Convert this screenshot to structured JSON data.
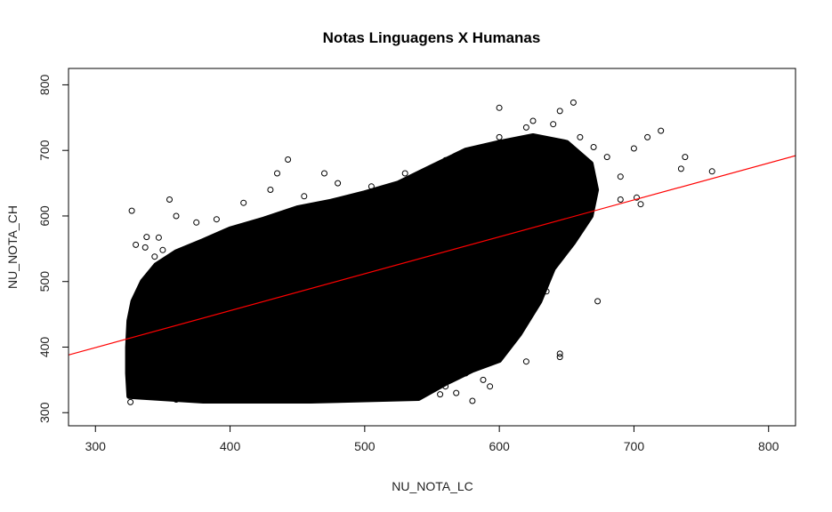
{
  "chart_data": {
    "type": "scatter",
    "title": "Notas Linguagens X Humanas",
    "xlabel": "NU_NOTA_LC",
    "ylabel": "NU_NOTA_CH",
    "xlim": [
      280,
      820
    ],
    "ylim": [
      280,
      825
    ],
    "x_ticks": [
      300,
      400,
      500,
      600,
      700,
      800
    ],
    "y_ticks": [
      300,
      400,
      500,
      600,
      700,
      800
    ],
    "x_tick_labels": [
      "300",
      "400",
      "500",
      "600",
      "700",
      "800"
    ],
    "y_tick_labels": [
      "300",
      "400",
      "500",
      "600",
      "700",
      "800"
    ],
    "grid": false,
    "legend": "none",
    "point_color": "#000000",
    "marker": "open-circle",
    "regression_line": {
      "x": [
        280,
        820
      ],
      "y": [
        388,
        692
      ],
      "color": "#ff0000"
    },
    "series": [
      {
        "values": [
          [
            327,
            608
          ],
          [
            355,
            625
          ],
          [
            443,
            686
          ],
          [
            435,
            665
          ],
          [
            470,
            665
          ],
          [
            600,
            765
          ],
          [
            655,
            773
          ],
          [
            645,
            760
          ],
          [
            625,
            745
          ],
          [
            640,
            740
          ],
          [
            720,
            730
          ],
          [
            738,
            690
          ],
          [
            758,
            668
          ],
          [
            735,
            672
          ],
          [
            710,
            720
          ],
          [
            700,
            703
          ],
          [
            705,
            618
          ],
          [
            702,
            628
          ],
          [
            690,
            625
          ],
          [
            673,
            470
          ],
          [
            635,
            485
          ],
          [
            645,
            390
          ],
          [
            645,
            385
          ],
          [
            620,
            378
          ],
          [
            598,
            395
          ],
          [
            580,
            318
          ],
          [
            593,
            340
          ],
          [
            588,
            350
          ],
          [
            575,
            360
          ],
          [
            568,
            330
          ],
          [
            556,
            328
          ],
          [
            330,
            556
          ],
          [
            337,
            552
          ],
          [
            338,
            568
          ],
          [
            347,
            567
          ],
          [
            350,
            548
          ],
          [
            344,
            538
          ],
          [
            326,
            316
          ],
          [
            330,
            330
          ],
          [
            360,
            320
          ],
          [
            400,
            320
          ],
          [
            450,
            322
          ],
          [
            500,
            325
          ],
          [
            520,
            330
          ],
          [
            540,
            335
          ],
          [
            560,
            340
          ],
          [
            335,
            490
          ],
          [
            340,
            470
          ],
          [
            360,
            600
          ],
          [
            375,
            590
          ],
          [
            390,
            595
          ],
          [
            410,
            620
          ],
          [
            430,
            640
          ],
          [
            455,
            630
          ],
          [
            480,
            650
          ],
          [
            505,
            645
          ],
          [
            530,
            665
          ],
          [
            560,
            685
          ],
          [
            580,
            700
          ],
          [
            600,
            720
          ],
          [
            620,
            735
          ],
          [
            650,
            700
          ],
          [
            660,
            720
          ],
          [
            670,
            705
          ],
          [
            680,
            690
          ],
          [
            690,
            660
          ],
          [
            665,
            650
          ],
          [
            655,
            625
          ],
          [
            640,
            560
          ],
          [
            630,
            540
          ],
          [
            620,
            520
          ],
          [
            610,
            500
          ],
          [
            600,
            470
          ],
          [
            590,
            450
          ],
          [
            580,
            420
          ],
          [
            570,
            400
          ],
          [
            560,
            380
          ],
          [
            545,
            365
          ],
          [
            530,
            355
          ],
          [
            510,
            345
          ],
          [
            490,
            340
          ],
          [
            470,
            338
          ],
          [
            440,
            335
          ],
          [
            410,
            333
          ],
          [
            380,
            340
          ],
          [
            355,
            355
          ],
          [
            340,
            380
          ],
          [
            330,
            410
          ],
          [
            328,
            440
          ],
          [
            332,
            470
          ],
          [
            345,
            500
          ],
          [
            365,
            520
          ],
          [
            380,
            540
          ],
          [
            400,
            560
          ],
          [
            420,
            575
          ],
          [
            440,
            580
          ],
          [
            460,
            600
          ],
          [
            480,
            610
          ],
          [
            500,
            620
          ],
          [
            520,
            630
          ],
          [
            540,
            640
          ],
          [
            560,
            660
          ],
          [
            580,
            675
          ],
          [
            600,
            690
          ],
          [
            615,
            705
          ],
          [
            630,
            710
          ],
          [
            645,
            690
          ],
          [
            650,
            670
          ],
          [
            640,
            650
          ],
          [
            630,
            640
          ],
          [
            620,
            625
          ],
          [
            610,
            600
          ],
          [
            600,
            580
          ],
          [
            590,
            560
          ],
          [
            580,
            545
          ],
          [
            570,
            520
          ],
          [
            560,
            500
          ],
          [
            550,
            480
          ],
          [
            540,
            460
          ],
          [
            525,
            440
          ],
          [
            510,
            420
          ],
          [
            490,
            400
          ],
          [
            470,
            385
          ],
          [
            450,
            375
          ],
          [
            430,
            365
          ],
          [
            410,
            360
          ],
          [
            390,
            365
          ],
          [
            370,
            375
          ],
          [
            355,
            390
          ],
          [
            345,
            410
          ]
        ]
      }
    ]
  }
}
